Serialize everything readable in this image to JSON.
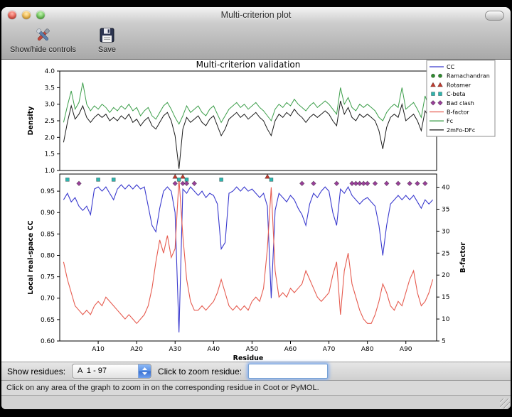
{
  "window": {
    "title": "Multi-criterion plot"
  },
  "toolbar": {
    "buttons": [
      {
        "label": "Show/hide controls",
        "icon": "tools-icon"
      },
      {
        "label": "Save",
        "icon": "save-icon"
      }
    ]
  },
  "controls": {
    "show_residues_label": "Show residues:",
    "residue_range_value": "A  1 - 97",
    "zoom_label": "Click to zoom residue:",
    "zoom_input_value": ""
  },
  "status_bar": {
    "text": "Click on any area of the graph to zoom in on the corresponding residue in Coot or PyMOL."
  },
  "chart_data": {
    "type": "line",
    "title": "Multi-criterion validation",
    "x_label": "Residue",
    "x_range": [
      0,
      98
    ],
    "x_ticks": [
      10,
      20,
      30,
      40,
      50,
      60,
      70,
      80,
      90
    ],
    "x_tick_labels": [
      "A10",
      "A20",
      "A30",
      "A40",
      "A50",
      "A60",
      "A70",
      "A80",
      "A90"
    ],
    "top_plot": {
      "y_label": "Density",
      "y_range": [
        1.0,
        4.0
      ],
      "y_ticks": [
        1.0,
        1.5,
        2.0,
        2.5,
        3.0,
        3.5,
        4.0
      ],
      "series": [
        {
          "name": "Fc",
          "color": "#3c9e4a",
          "values": [
            2.45,
            2.95,
            3.4,
            2.85,
            3.05,
            3.65,
            3.0,
            2.8,
            2.95,
            2.85,
            3.0,
            2.9,
            2.75,
            2.9,
            2.8,
            2.95,
            2.85,
            3.0,
            2.8,
            2.9,
            2.65,
            2.8,
            2.9,
            2.65,
            2.55,
            2.75,
            2.95,
            3.05,
            2.85,
            2.6,
            2.4,
            2.65,
            2.95,
            2.75,
            2.85,
            2.95,
            2.75,
            2.65,
            2.85,
            2.95,
            2.7,
            2.45,
            2.65,
            2.85,
            2.95,
            3.05,
            2.9,
            3.0,
            2.85,
            2.95,
            3.05,
            2.9,
            2.8,
            2.65,
            2.5,
            2.85,
            3.0,
            2.9,
            3.05,
            2.95,
            3.15,
            3.0,
            2.9,
            2.8,
            2.95,
            3.05,
            2.9,
            3.0,
            3.1,
            3.0,
            2.85,
            2.7,
            3.5,
            3.0,
            3.2,
            2.9,
            2.8,
            3.0,
            2.9,
            3.0,
            2.9,
            2.8,
            2.6,
            2.5,
            2.75,
            2.9,
            3.0,
            2.9,
            3.5,
            2.85,
            2.95,
            3.05,
            2.85,
            2.6,
            3.25,
            2.9,
            3.0
          ]
        },
        {
          "name": "2mFo-DFc",
          "color": "#1a1a1a",
          "values": [
            1.85,
            2.45,
            2.95,
            2.55,
            2.7,
            2.95,
            2.6,
            2.45,
            2.6,
            2.7,
            2.6,
            2.7,
            2.5,
            2.6,
            2.5,
            2.65,
            2.55,
            2.7,
            2.45,
            2.55,
            2.35,
            2.5,
            2.6,
            2.35,
            2.25,
            2.45,
            2.65,
            2.75,
            2.5,
            2.05,
            1.05,
            2.25,
            2.6,
            2.45,
            2.55,
            2.65,
            2.45,
            2.35,
            2.55,
            2.65,
            2.35,
            2.05,
            2.25,
            2.55,
            2.65,
            2.75,
            2.6,
            2.7,
            2.55,
            2.65,
            2.75,
            2.6,
            2.5,
            2.25,
            2.05,
            2.5,
            2.7,
            2.6,
            2.75,
            2.65,
            2.85,
            2.7,
            2.6,
            2.45,
            2.6,
            2.7,
            2.6,
            2.7,
            2.8,
            2.7,
            2.5,
            2.35,
            3.1,
            2.7,
            2.9,
            2.6,
            2.5,
            2.7,
            2.6,
            2.7,
            2.6,
            2.5,
            2.2,
            1.65,
            2.3,
            2.6,
            2.7,
            2.6,
            3.0,
            2.5,
            2.6,
            2.7,
            2.5,
            2.2,
            2.8,
            2.6,
            2.7
          ]
        }
      ]
    },
    "bottom_plot": {
      "y_label_left": "Local real-space CC",
      "y_range_left": [
        0.6,
        0.99
      ],
      "y_ticks_left": [
        0.6,
        0.65,
        0.7,
        0.75,
        0.8,
        0.85,
        0.9,
        0.95
      ],
      "y_label_right": "B-factor",
      "y_range_right": [
        5,
        43
      ],
      "y_ticks_right": [
        5,
        10,
        15,
        20,
        25,
        30,
        35,
        40
      ],
      "series": [
        {
          "name": "CC",
          "axis": "left",
          "color": "#3a3ace",
          "values": [
            0.93,
            0.945,
            0.925,
            0.935,
            0.915,
            0.905,
            0.915,
            0.895,
            0.955,
            0.96,
            0.95,
            0.96,
            0.945,
            0.93,
            0.955,
            0.965,
            0.955,
            0.965,
            0.955,
            0.965,
            0.955,
            0.96,
            0.915,
            0.87,
            0.855,
            0.91,
            0.95,
            0.96,
            0.95,
            0.9,
            0.62,
            0.955,
            0.945,
            0.96,
            0.95,
            0.94,
            0.95,
            0.935,
            0.945,
            0.94,
            0.92,
            0.815,
            0.83,
            0.945,
            0.95,
            0.96,
            0.95,
            0.96,
            0.95,
            0.955,
            0.945,
            0.935,
            0.945,
            0.915,
            0.7,
            0.905,
            0.945,
            0.935,
            0.925,
            0.94,
            0.93,
            0.91,
            0.895,
            0.87,
            0.92,
            0.945,
            0.935,
            0.95,
            0.96,
            0.95,
            0.9,
            0.87,
            0.955,
            0.945,
            0.96,
            0.94,
            0.93,
            0.92,
            0.93,
            0.935,
            0.925,
            0.915,
            0.87,
            0.8,
            0.87,
            0.92,
            0.93,
            0.94,
            0.93,
            0.94,
            0.93,
            0.94,
            0.925,
            0.91,
            0.93,
            0.92,
            0.93
          ]
        },
        {
          "name": "B-factor",
          "axis": "right",
          "color": "#e65c50",
          "values": [
            23,
            19,
            16,
            13,
            12,
            11,
            12,
            11,
            13,
            14,
            13,
            15,
            14,
            13,
            12,
            11,
            10,
            11,
            10,
            9,
            10,
            11,
            13,
            17,
            23,
            28,
            25,
            29,
            24,
            26,
            42,
            29,
            19,
            14,
            12,
            12,
            13,
            12,
            13,
            14,
            16,
            19,
            16,
            13,
            12,
            13,
            12,
            13,
            12,
            14,
            15,
            14,
            17,
            26,
            40,
            21,
            15,
            16,
            15,
            17,
            16,
            17,
            18,
            21,
            19,
            17,
            15,
            14,
            15,
            16,
            20,
            23,
            11,
            21,
            25,
            18,
            15,
            12,
            10,
            9,
            9,
            11,
            14,
            18,
            16,
            13,
            12,
            14,
            13,
            16,
            19,
            21,
            16,
            13,
            14,
            16,
            19
          ]
        }
      ],
      "markers": [
        {
          "name": "Rotamer",
          "shape": "triangle",
          "color": "#bf3a2e",
          "y_value": 0.984,
          "residues": [
            30,
            32,
            54
          ]
        },
        {
          "name": "C-beta",
          "shape": "square",
          "color": "#2fb5ae",
          "y_value": 0.977,
          "residues": [
            2,
            10,
            14,
            31,
            33,
            42,
            55
          ]
        },
        {
          "name": "Bad clash",
          "shape": "diamond",
          "color": "#993f99",
          "y_value": 0.968,
          "residues": [
            5,
            30,
            32,
            33,
            35,
            63,
            66,
            72,
            76,
            77,
            78,
            79,
            80,
            82,
            85,
            88,
            91,
            93,
            95
          ]
        },
        {
          "name": "Ramachandran",
          "shape": "circle",
          "color": "#2e8b2e",
          "y_value": 0.984,
          "residues": []
        }
      ]
    },
    "legend": [
      {
        "label": "CC",
        "type": "line",
        "color": "#3a3ace"
      },
      {
        "label": "Ramachandran",
        "type": "circle",
        "color": "#2e8b2e"
      },
      {
        "label": "Rotamer",
        "type": "triangle",
        "color": "#bf3a2e"
      },
      {
        "label": "C-beta",
        "type": "square",
        "color": "#2fb5ae"
      },
      {
        "label": "Bad clash",
        "type": "diamond",
        "color": "#993f99"
      },
      {
        "label": "B-factor",
        "type": "line",
        "color": "#e65c50"
      },
      {
        "label": "Fc",
        "type": "line",
        "color": "#3c9e4a"
      },
      {
        "label": "2mFo-DFc",
        "type": "line",
        "color": "#1a1a1a"
      }
    ]
  }
}
